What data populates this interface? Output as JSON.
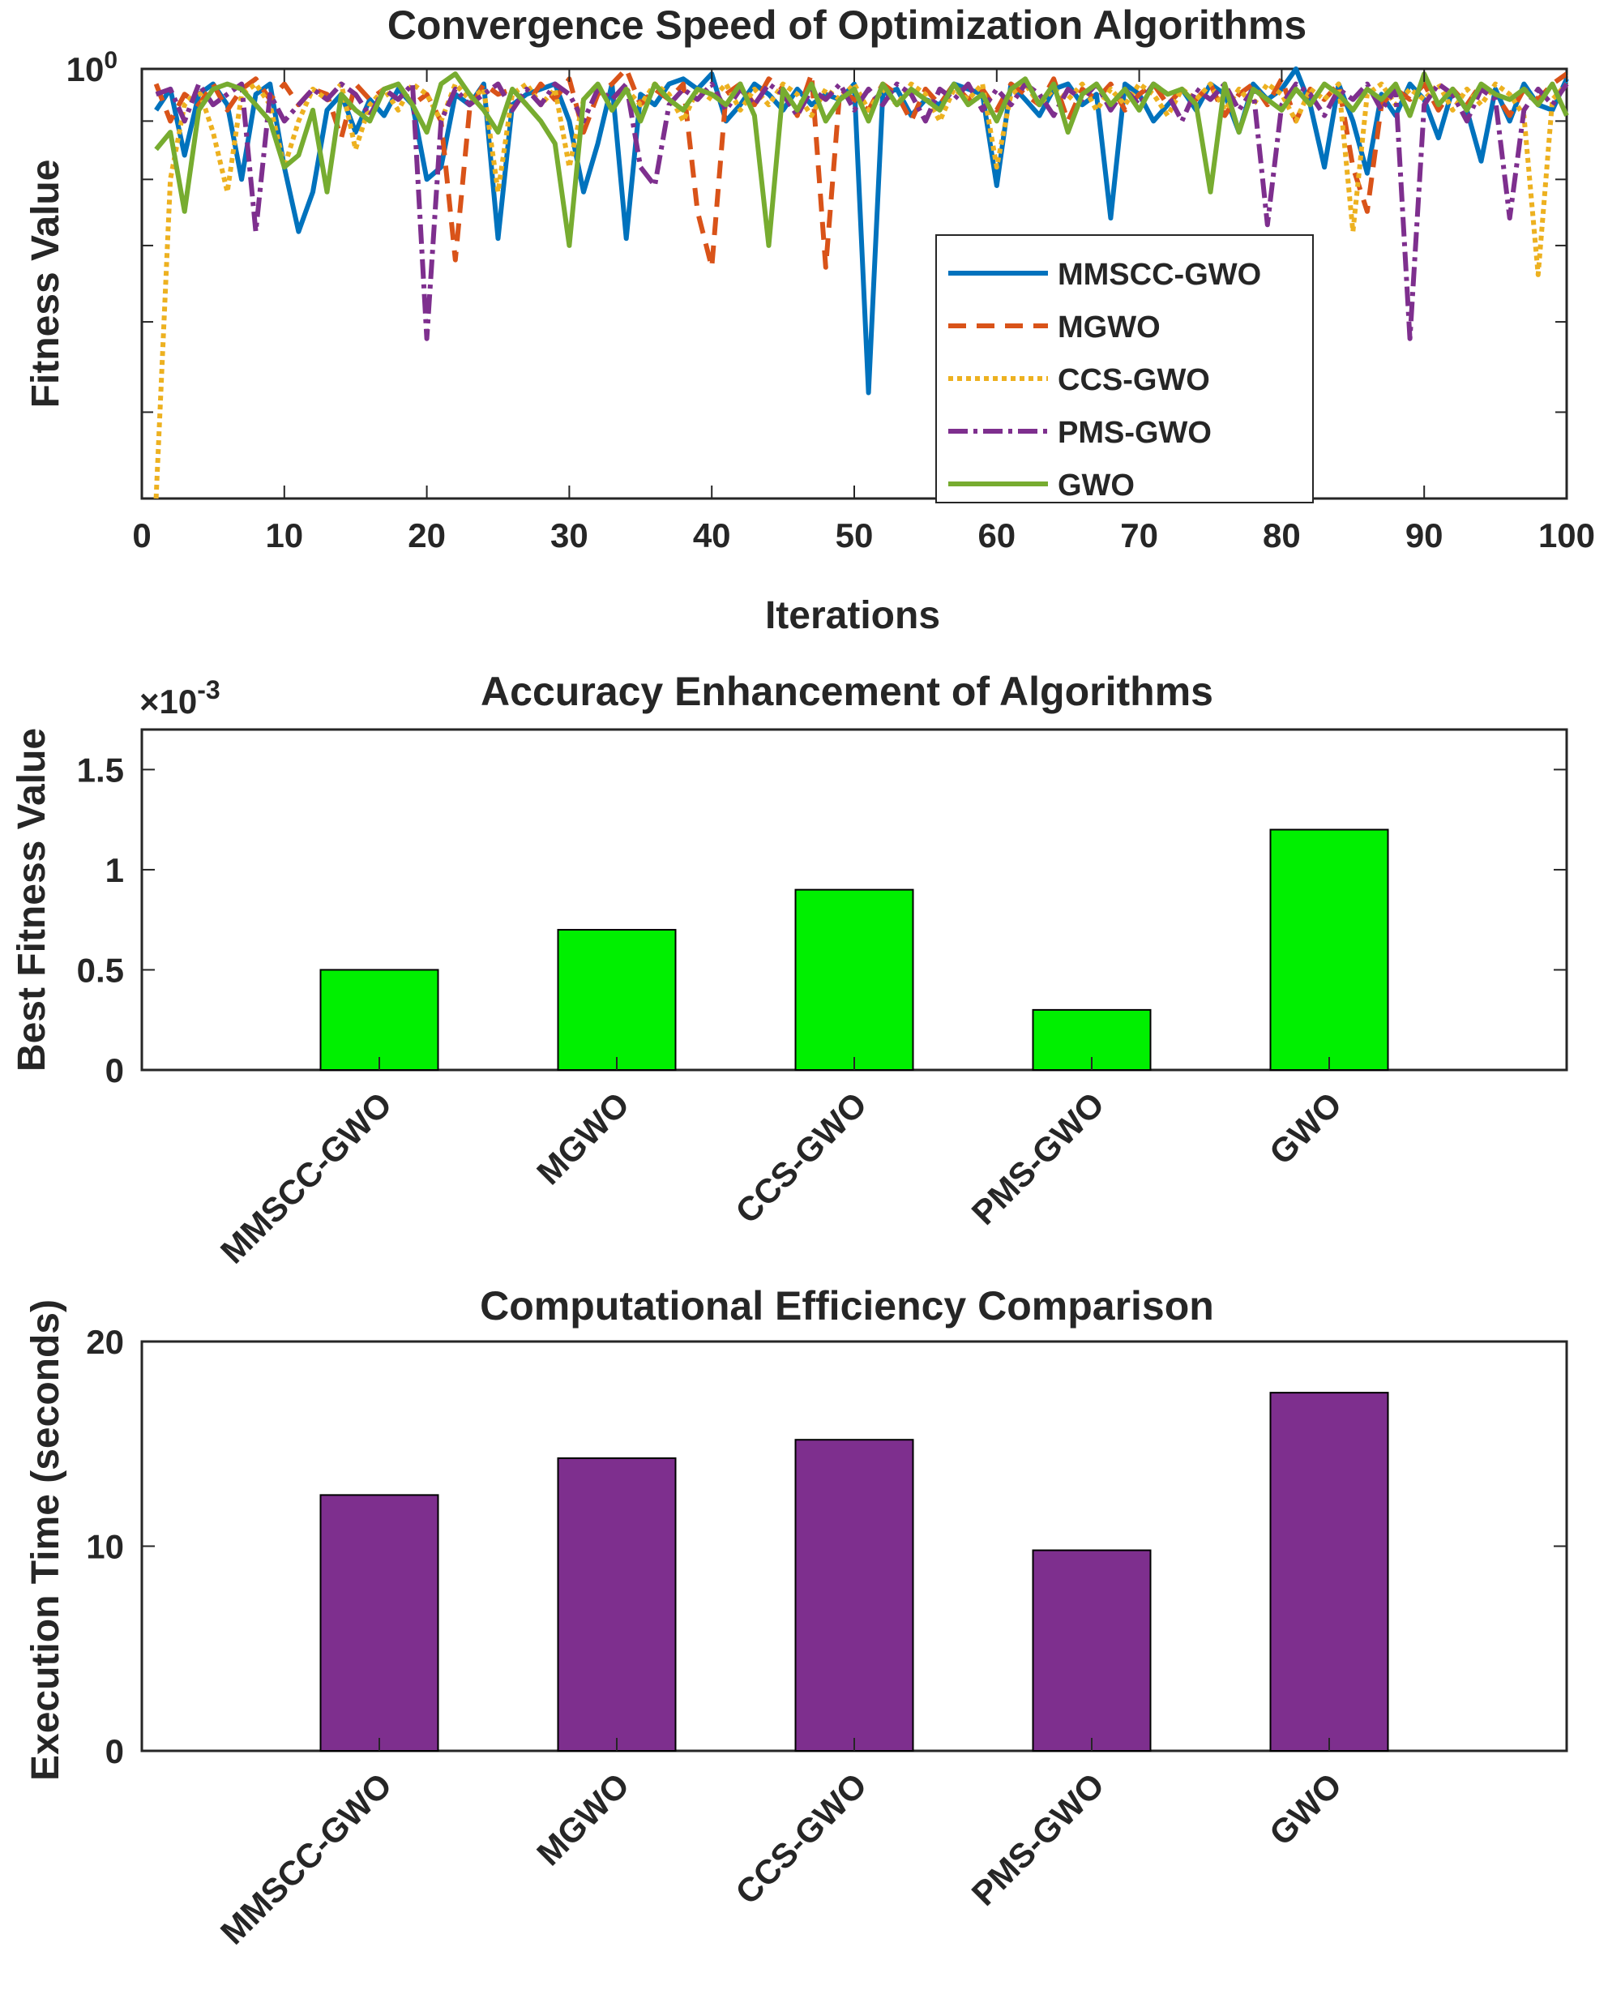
{
  "chart_data": [
    {
      "type": "line",
      "title": "Convergence Speed of Optimization Algorithms",
      "xlabel": "Iterations",
      "ylabel": "Fitness Value",
      "xlim": [
        0,
        100
      ],
      "ylim": [
        0.42,
        1.0
      ],
      "yscale": "log",
      "xticks": [
        "0",
        "10",
        "20",
        "30",
        "40",
        "50",
        "60",
        "70",
        "80",
        "90",
        "100"
      ],
      "yticks": [
        {
          "base": "10",
          "exp": "0"
        }
      ],
      "legend_position": "inside-bottom-right",
      "x": [
        1,
        2,
        3,
        4,
        5,
        6,
        7,
        8,
        9,
        10,
        11,
        12,
        13,
        14,
        15,
        16,
        17,
        18,
        19,
        20,
        21,
        22,
        23,
        24,
        25,
        26,
        27,
        28,
        29,
        30,
        31,
        32,
        33,
        34,
        35,
        36,
        37,
        38,
        39,
        40,
        41,
        42,
        43,
        44,
        45,
        46,
        47,
        48,
        49,
        50,
        51,
        52,
        53,
        54,
        55,
        56,
        57,
        58,
        59,
        60,
        61,
        62,
        63,
        64,
        65,
        66,
        67,
        68,
        69,
        70,
        71,
        72,
        73,
        74,
        75,
        76,
        77,
        78,
        79,
        80,
        81,
        82,
        83,
        84,
        85,
        86,
        87,
        88,
        89,
        90,
        91,
        92,
        93,
        94,
        95,
        96,
        97,
        98,
        99,
        100
      ],
      "series": [
        {
          "name": "MMSCC-GWO",
          "color": "#0072BD",
          "dash": "",
          "values": [
            0.92,
            0.96,
            0.84,
            0.95,
            0.97,
            0.93,
            0.8,
            0.95,
            0.97,
            0.82,
            0.72,
            0.78,
            0.92,
            0.95,
            0.88,
            0.94,
            0.91,
            0.96,
            0.93,
            0.8,
            0.82,
            0.95,
            0.93,
            0.97,
            0.71,
            0.93,
            0.95,
            0.96,
            0.97,
            0.9,
            0.78,
            0.86,
            0.97,
            0.71,
            0.95,
            0.93,
            0.97,
            0.98,
            0.96,
            0.99,
            0.9,
            0.93,
            0.97,
            0.95,
            0.92,
            0.96,
            0.93,
            0.95,
            0.94,
            0.97,
            0.52,
            0.95,
            0.96,
            0.91,
            0.94,
            0.93,
            0.97,
            0.96,
            0.95,
            0.79,
            0.97,
            0.94,
            0.91,
            0.96,
            0.97,
            0.93,
            0.95,
            0.74,
            0.97,
            0.95,
            0.9,
            0.93,
            0.96,
            0.92,
            0.97,
            0.95,
            0.88,
            0.97,
            0.94,
            0.96,
            1.0,
            0.93,
            0.82,
            0.97,
            0.9,
            0.81,
            0.95,
            0.91,
            0.97,
            0.94,
            0.87,
            0.96,
            0.92,
            0.83,
            0.96,
            0.9,
            0.97,
            0.93,
            0.92,
            0.98
          ]
        },
        {
          "name": "MGWO",
          "color": "#D95319",
          "dash": "22,13",
          "values": [
            0.97,
            0.9,
            0.95,
            0.93,
            0.97,
            0.92,
            0.96,
            0.98,
            0.94,
            0.97,
            0.93,
            0.96,
            0.95,
            0.87,
            0.97,
            0.94,
            0.96,
            0.97,
            0.93,
            0.95,
            0.9,
            0.68,
            0.92,
            0.97,
            0.95,
            0.96,
            0.93,
            0.97,
            0.94,
            0.98,
            0.88,
            0.95,
            0.97,
            1.0,
            0.93,
            0.96,
            0.94,
            0.97,
            0.75,
            0.67,
            0.95,
            0.97,
            0.93,
            0.98,
            0.96,
            0.91,
            0.99,
            0.67,
            0.96,
            0.94,
            0.92,
            0.97,
            0.95,
            0.9,
            0.96,
            0.93,
            0.97,
            0.94,
            0.96,
            0.92,
            0.97,
            0.95,
            0.93,
            0.98,
            0.9,
            0.96,
            0.94,
            0.97,
            0.92,
            0.95,
            0.97,
            0.93,
            0.96,
            0.94,
            0.97,
            0.91,
            0.95,
            0.97,
            0.93,
            0.98,
            0.9,
            0.96,
            0.94,
            0.97,
            0.82,
            0.75,
            0.93,
            0.96,
            0.94,
            0.97,
            0.92,
            0.96,
            0.93,
            0.97,
            0.95,
            0.91,
            0.96,
            0.94,
            0.97,
            0.99
          ]
        },
        {
          "name": "CCS-GWO",
          "color": "#EDB120",
          "dash": "6,5",
          "values": [
            0.42,
            0.8,
            0.93,
            0.96,
            0.88,
            0.78,
            0.95,
            0.97,
            0.93,
            0.82,
            0.9,
            0.96,
            0.94,
            0.97,
            0.85,
            0.93,
            0.96,
            0.92,
            0.97,
            0.95,
            0.9,
            0.97,
            0.94,
            0.96,
            0.78,
            0.95,
            0.97,
            0.93,
            0.96,
            0.82,
            0.94,
            0.97,
            0.92,
            0.96,
            0.93,
            0.97,
            0.95,
            0.9,
            0.96,
            0.94,
            0.97,
            0.92,
            0.96,
            0.93,
            0.97,
            0.95,
            0.91,
            0.96,
            0.94,
            0.97,
            0.92,
            0.96,
            0.93,
            0.97,
            0.95,
            0.9,
            0.96,
            0.94,
            0.97,
            0.82,
            0.95,
            0.97,
            0.93,
            0.96,
            0.94,
            0.97,
            0.92,
            0.96,
            0.93,
            0.97,
            0.95,
            0.91,
            0.96,
            0.94,
            0.97,
            0.92,
            0.96,
            0.93,
            0.97,
            0.95,
            0.9,
            0.96,
            0.94,
            0.97,
            0.72,
            0.95,
            0.97,
            0.93,
            0.96,
            0.94,
            0.97,
            0.92,
            0.96,
            0.93,
            0.97,
            0.95,
            0.91,
            0.66,
            0.94,
            0.97
          ]
        },
        {
          "name": "PMS-GWO",
          "color": "#7E2F8E",
          "dash": "24,7,5,7",
          "values": [
            0.95,
            0.96,
            0.9,
            0.97,
            0.93,
            0.95,
            0.97,
            0.72,
            0.95,
            0.9,
            0.93,
            0.96,
            0.94,
            0.97,
            0.95,
            0.91,
            0.96,
            0.94,
            0.97,
            0.58,
            0.9,
            0.96,
            0.93,
            0.95,
            0.97,
            0.92,
            0.96,
            0.93,
            0.97,
            0.95,
            0.9,
            0.96,
            0.94,
            0.97,
            0.82,
            0.79,
            0.93,
            0.96,
            0.94,
            0.97,
            0.92,
            0.96,
            0.93,
            0.97,
            0.95,
            0.91,
            0.96,
            0.94,
            0.97,
            0.92,
            0.96,
            0.93,
            0.97,
            0.95,
            0.9,
            0.96,
            0.94,
            0.97,
            0.92,
            0.96,
            0.93,
            0.97,
            0.95,
            0.91,
            0.96,
            0.94,
            0.97,
            0.92,
            0.96,
            0.93,
            0.97,
            0.95,
            0.9,
            0.96,
            0.94,
            0.97,
            0.92,
            0.96,
            0.73,
            0.93,
            0.97,
            0.95,
            0.91,
            0.96,
            0.94,
            0.97,
            0.92,
            0.96,
            0.58,
            0.93,
            0.97,
            0.95,
            0.9,
            0.96,
            0.94,
            0.74,
            0.92,
            0.96,
            0.93,
            0.97
          ]
        },
        {
          "name": "GWO",
          "color": "#77AC30",
          "dash": "",
          "values": [
            0.85,
            0.88,
            0.75,
            0.92,
            0.96,
            0.97,
            0.96,
            0.93,
            0.9,
            0.82,
            0.84,
            0.92,
            0.78,
            0.95,
            0.92,
            0.9,
            0.96,
            0.97,
            0.93,
            0.88,
            0.97,
            0.99,
            0.95,
            0.92,
            0.88,
            0.96,
            0.93,
            0.9,
            0.86,
            0.7,
            0.94,
            0.97,
            0.92,
            0.96,
            0.9,
            0.97,
            0.94,
            0.92,
            0.96,
            0.95,
            0.93,
            0.97,
            0.91,
            0.7,
            0.96,
            0.92,
            0.97,
            0.9,
            0.94,
            0.96,
            0.9,
            0.97,
            0.93,
            0.96,
            0.94,
            0.92,
            0.97,
            0.93,
            0.95,
            0.9,
            0.96,
            0.98,
            0.93,
            0.97,
            0.88,
            0.95,
            0.97,
            0.93,
            0.96,
            0.92,
            0.97,
            0.95,
            0.96,
            0.93,
            0.78,
            0.97,
            0.88,
            0.96,
            0.94,
            0.92,
            0.96,
            0.93,
            0.97,
            0.95,
            0.92,
            0.96,
            0.94,
            0.97,
            0.91,
            0.99,
            0.93,
            0.96,
            0.92,
            0.97,
            0.95,
            0.94,
            0.96,
            0.93,
            0.97,
            0.91
          ]
        }
      ]
    },
    {
      "type": "bar",
      "title": "Accuracy Enhancement of Algorithms",
      "xlabel": "",
      "ylabel": "Best Fitness Value",
      "exponent_label": "×10",
      "exponent_power": "-3",
      "categories": [
        "MMSCC-GWO",
        "MGWO",
        "CCS-GWO",
        "PMS-GWO",
        "GWO"
      ],
      "values": [
        0.5,
        0.7,
        0.9,
        0.3,
        1.2
      ],
      "ylim": [
        0,
        1.7
      ],
      "yticks": [
        {
          "v": 0,
          "label": "0"
        },
        {
          "v": 0.5,
          "label": "0.5"
        },
        {
          "v": 1,
          "label": "1"
        },
        {
          "v": 1.5,
          "label": "1.5"
        }
      ],
      "bar_color": "#00F000"
    },
    {
      "type": "bar",
      "title": "Computational Efficiency Comparison",
      "xlabel": "",
      "ylabel": "Execution Time (seconds)",
      "categories": [
        "MMSCC-GWO",
        "MGWO",
        "CCS-GWO",
        "PMS-GWO",
        "GWO"
      ],
      "values": [
        12.5,
        14.3,
        15.2,
        9.8,
        17.5
      ],
      "ylim": [
        0,
        20
      ],
      "yticks": [
        {
          "v": 0,
          "label": "0"
        },
        {
          "v": 10,
          "label": "10"
        },
        {
          "v": 20,
          "label": "20"
        }
      ],
      "bar_color": "#7E2F8E"
    }
  ]
}
